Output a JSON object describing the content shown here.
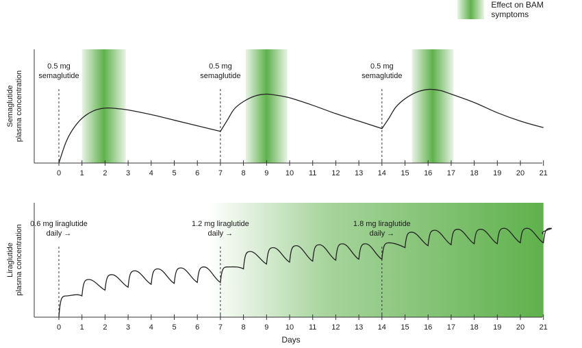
{
  "legend": {
    "label": "Effect on BAM symptoms",
    "color": "#5fb14c"
  },
  "xlabel": "Days",
  "colors": {
    "effect": "#5fb14c",
    "line": "#222222"
  },
  "chart_data": [
    {
      "type": "line",
      "ylabel_lines": [
        "Semaglutide",
        "plasma concentration"
      ],
      "x_ticks": [
        0,
        1,
        2,
        3,
        4,
        5,
        6,
        7,
        8,
        9,
        10,
        11,
        12,
        13,
        14,
        15,
        16,
        17,
        18,
        19,
        20,
        21
      ],
      "xlim": [
        -1,
        21
      ],
      "dose_labels": [
        {
          "day": 0,
          "lines": [
            "0.5 mg",
            "semaglutide"
          ]
        },
        {
          "day": 7,
          "lines": [
            "0.5 mg",
            "semaglutide"
          ]
        },
        {
          "day": 14,
          "lines": [
            "0.5 mg",
            "semaglutide"
          ]
        }
      ],
      "effect_bands": [
        {
          "start": 1,
          "end": 2.9
        },
        {
          "start": 8.1,
          "end": 9.9
        },
        {
          "start": 15.3,
          "end": 17.1
        }
      ],
      "series": [
        {
          "x": [
            0,
            0.3,
            0.6,
            1,
            1.5,
            2,
            2.5,
            3,
            4,
            5,
            6,
            7,
            7.3,
            7.6,
            8,
            8.5,
            9,
            9.5,
            10,
            11,
            12,
            13,
            14,
            14.3,
            14.6,
            15,
            15.5,
            16,
            16.5,
            17,
            18,
            19,
            20,
            21
          ],
          "y": [
            0,
            0.22,
            0.36,
            0.48,
            0.56,
            0.59,
            0.585,
            0.57,
            0.52,
            0.46,
            0.4,
            0.34,
            0.46,
            0.58,
            0.66,
            0.72,
            0.74,
            0.725,
            0.7,
            0.62,
            0.53,
            0.45,
            0.37,
            0.48,
            0.6,
            0.69,
            0.76,
            0.79,
            0.78,
            0.74,
            0.65,
            0.54,
            0.45,
            0.38
          ]
        }
      ],
      "ylim": [
        0,
        1
      ]
    },
    {
      "type": "line",
      "ylabel_lines": [
        "Liraglutide",
        "plasma concentration"
      ],
      "x_ticks": [
        0,
        1,
        2,
        3,
        4,
        5,
        6,
        7,
        8,
        9,
        10,
        11,
        12,
        13,
        14,
        15,
        16,
        17,
        18,
        19,
        20,
        21
      ],
      "xlim": [
        -1,
        21
      ],
      "dose_labels": [
        {
          "day": 0,
          "lines": [
            "0.6 mg liraglutide",
            "daily →"
          ]
        },
        {
          "day": 7,
          "lines": [
            "1.2 mg liraglutide",
            "daily →"
          ]
        },
        {
          "day": 14,
          "lines": [
            "1.8 mg liraglutide",
            "daily →"
          ]
        }
      ],
      "effect_gradient": {
        "start": 6.5,
        "end": 21
      },
      "daily_troughs": [
        0,
        0.22,
        0.28,
        0.31,
        0.34,
        0.35,
        0.36,
        0.36,
        0.5,
        0.55,
        0.57,
        0.58,
        0.59,
        0.6,
        0.6,
        0.72,
        0.74,
        0.75,
        0.76,
        0.76,
        0.77,
        0.77
      ],
      "daily_peaks": [
        0.22,
        0.39,
        0.44,
        0.48,
        0.5,
        0.51,
        0.52,
        0.52,
        0.68,
        0.72,
        0.74,
        0.75,
        0.76,
        0.76,
        0.77,
        0.88,
        0.9,
        0.91,
        0.91,
        0.92,
        0.92,
        0.92
      ],
      "ylim": [
        0,
        1
      ]
    }
  ]
}
